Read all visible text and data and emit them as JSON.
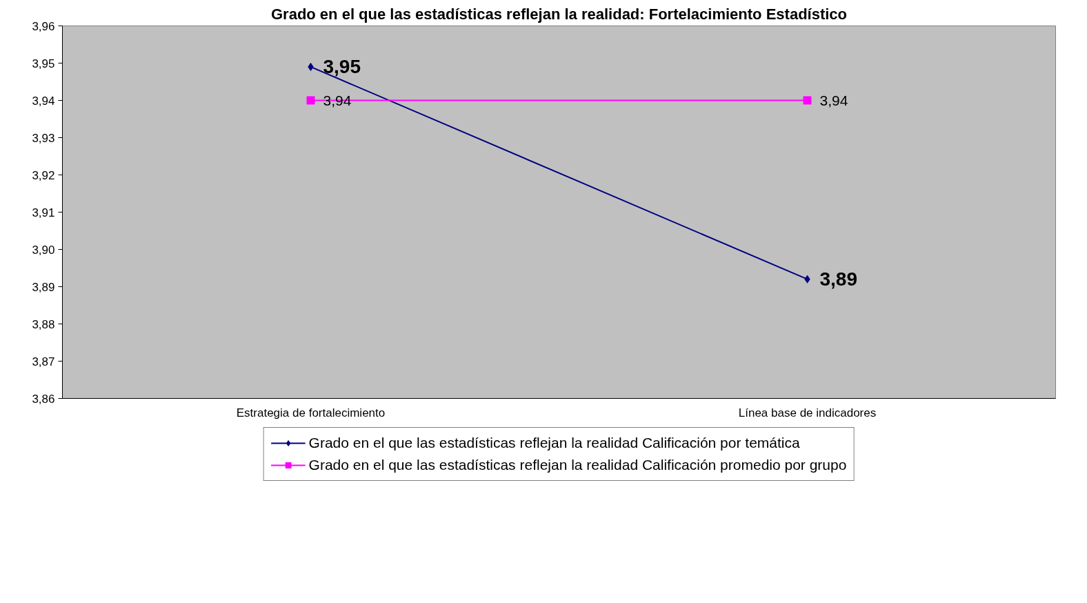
{
  "chart_data": {
    "type": "line",
    "title": "Grado en el que las estadísticas reflejan la realidad: Fortelacimiento Estadístico",
    "categories": [
      "Estrategia de fortalecimiento",
      "Línea base de indicadores"
    ],
    "series": [
      {
        "name": "Grado en el que las estadísticas reflejan la realidad Calificación por temática",
        "color": "#000080",
        "marker": "diamond",
        "values": [
          3.949,
          3.892
        ],
        "value_labels": [
          "3,95",
          "3,89"
        ]
      },
      {
        "name": "Grado en el que las estadísticas reflejan la realidad Calificación promedio por grupo",
        "color": "#ff00ff",
        "marker": "square",
        "values": [
          3.94,
          3.94
        ],
        "value_labels": [
          "3,94",
          "3,94"
        ]
      }
    ],
    "ylim": [
      3.86,
      3.96
    ],
    "yticks": [
      {
        "value": 3.86,
        "label": "3,86"
      },
      {
        "value": 3.87,
        "label": "3,87"
      },
      {
        "value": 3.88,
        "label": "3,88"
      },
      {
        "value": 3.89,
        "label": "3,89"
      },
      {
        "value": 3.9,
        "label": "3,90"
      },
      {
        "value": 3.91,
        "label": "3,91"
      },
      {
        "value": 3.92,
        "label": "3,92"
      },
      {
        "value": 3.93,
        "label": "3,93"
      },
      {
        "value": 3.94,
        "label": "3,94"
      },
      {
        "value": 3.95,
        "label": "3,95"
      },
      {
        "value": 3.96,
        "label": "3,96"
      }
    ],
    "grid": false,
    "legend": "bottom",
    "line_style": "solid"
  }
}
